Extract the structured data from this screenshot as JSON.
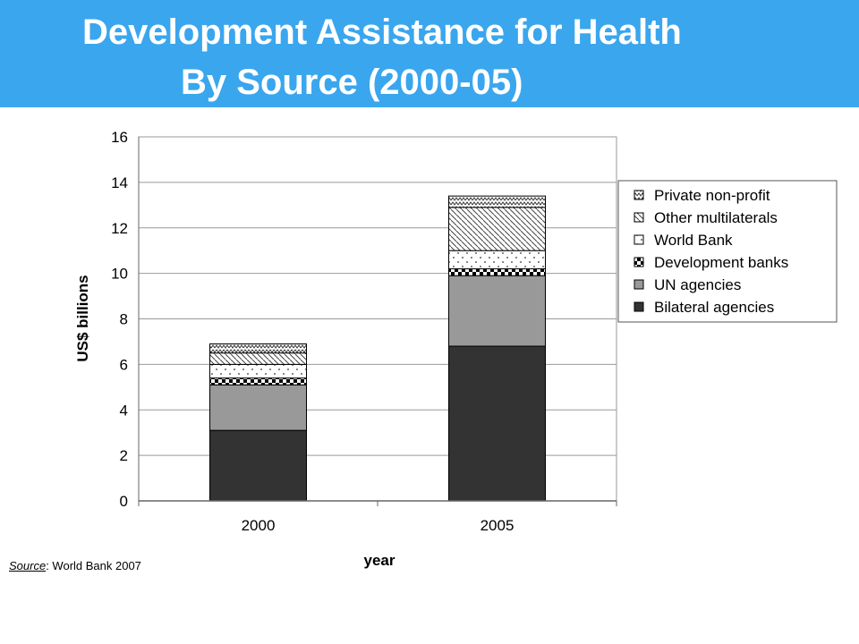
{
  "slide": {
    "title_line1": "Development Assistance for Health",
    "title_line2": "By Source (2000-05)",
    "source_label": "Source",
    "source_text": ": World Bank 2007"
  },
  "colors": {
    "banner": "#3aa6ee",
    "bilateral": "#333333",
    "un": "#999999"
  },
  "chart_data": {
    "type": "bar",
    "stacked": true,
    "categories": [
      "2000",
      "2005"
    ],
    "xlabel": "year",
    "ylabel": "US$ billions",
    "ylim": [
      0,
      16
    ],
    "yticks": [
      0,
      2,
      4,
      6,
      8,
      10,
      12,
      14,
      16
    ],
    "grid": true,
    "legend_position": "right",
    "series": [
      {
        "name": "Bilateral agencies",
        "values": [
          3.1,
          6.8
        ],
        "pattern": "solid-dark"
      },
      {
        "name": "UN agencies",
        "values": [
          2.0,
          3.1
        ],
        "pattern": "solid-gray"
      },
      {
        "name": "Development banks",
        "values": [
          0.3,
          0.3
        ],
        "pattern": "checker"
      },
      {
        "name": "World Bank",
        "values": [
          0.6,
          0.8
        ],
        "pattern": "dots"
      },
      {
        "name": "Other multilaterals",
        "values": [
          0.5,
          1.9
        ],
        "pattern": "wave-hatch"
      },
      {
        "name": "Private non-profit",
        "values": [
          0.4,
          0.5
        ],
        "pattern": "zigzag"
      }
    ]
  }
}
